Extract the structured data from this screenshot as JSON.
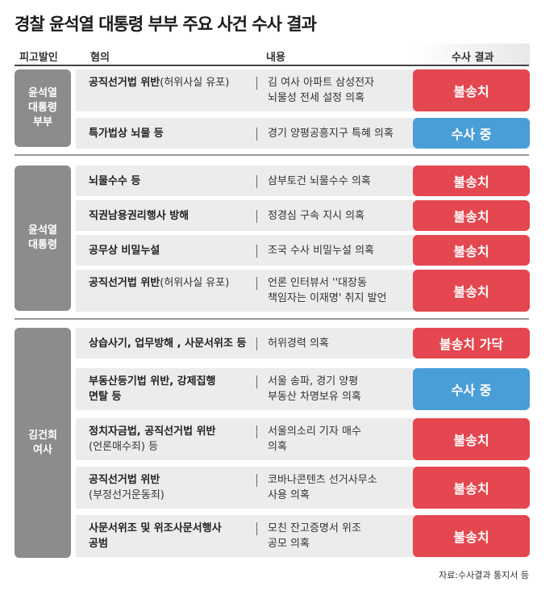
{
  "title": "경찰 윤석열 대통령 부부 주요 사건 수사 결과",
  "headers": {
    "defendant": "피고발인",
    "charge": "혐의",
    "content": "내용",
    "result": "수사 결과"
  },
  "groups": [
    {
      "defendant": [
        "윤석열",
        "대통령",
        "부부"
      ],
      "rows": [
        {
          "charge_bold": "공직선거법 위반",
          "charge_sub": "(허위사실 유포)",
          "charge_line2": "",
          "content1": "김 여사 아파트 삼성전자",
          "content2": "뇌물성 전세 설정 의혹",
          "result": "불송치",
          "color": "#e4474f"
        },
        {
          "charge_bold": "특가법상 뇌물 등",
          "charge_sub": "",
          "charge_line2": "",
          "content1": "경기 양평공흥지구 특혜 의혹",
          "content2": "",
          "result": "수사 중",
          "color": "#4a9ed8"
        }
      ]
    },
    {
      "defendant": [
        "윤석열",
        "대통령"
      ],
      "rows": [
        {
          "charge_bold": "뇌물수수 등",
          "charge_sub": "",
          "charge_line2": "",
          "content1": "삼부토건 뇌물수수 의혹",
          "content2": "",
          "result": "불송치",
          "color": "#e4474f"
        },
        {
          "charge_bold": "직권남용권리행사 방해",
          "charge_sub": "",
          "charge_line2": "",
          "content1": "정경심 구속 지시 의혹",
          "content2": "",
          "result": "불송치",
          "color": "#e4474f"
        },
        {
          "charge_bold": "공무상 비밀누설",
          "charge_sub": "",
          "charge_line2": "",
          "content1": "조국 수사 비밀누설 의혹",
          "content2": "",
          "result": "불송치",
          "color": "#e4474f"
        },
        {
          "charge_bold": "공직선거법 위반",
          "charge_sub": "(허위사실 유포)",
          "charge_line2": "",
          "content1": "언론 인터뷰서 ''대장동",
          "content2": "책임자는 이재명' 취지 발언",
          "result": "불송치",
          "color": "#e4474f"
        }
      ]
    },
    {
      "defendant": [
        "김건희",
        "여사"
      ],
      "rows": [
        {
          "charge_bold": "상습사기, 업무방해 , 사문서위조 등",
          "charge_sub": "",
          "charge_line2": "",
          "content1": "허위경력 의혹",
          "content2": "",
          "result": "불송치 가닥",
          "color": "#e4474f"
        },
        {
          "charge_bold": "부동산등기법 위반, 강제집행",
          "charge_sub": "",
          "charge_line2": "면탈 등",
          "content1": "서울 송파, 경기 양평",
          "content2": "부동산 차명보유 의혹",
          "result": "수사 중",
          "color": "#4a9ed8"
        },
        {
          "charge_bold": "정치자금법, 공직선거법 위반",
          "charge_sub": "",
          "charge_line2": "(언론매수죄) 등",
          "content1": "서울의소리 기자 매수",
          "content2": "의혹",
          "result": "불송치",
          "color": "#e4474f"
        },
        {
          "charge_bold": "공직선거법 위반",
          "charge_sub": "",
          "charge_line2": "(부정선거운동죄)",
          "content1": "코바나콘텐츠 선거사무소",
          "content2": "사용 의혹",
          "result": "불송치",
          "color": "#e4474f"
        },
        {
          "charge_bold": "사문서위조 및 위조사문서행사",
          "charge_sub": "",
          "charge_line2": "공범",
          "content1": "모친 잔고증명서 위조",
          "content2": "공모 의혹",
          "result": "불송치",
          "color": "#e4474f"
        }
      ]
    }
  ],
  "source": "자료:수사결과 통지서 등"
}
